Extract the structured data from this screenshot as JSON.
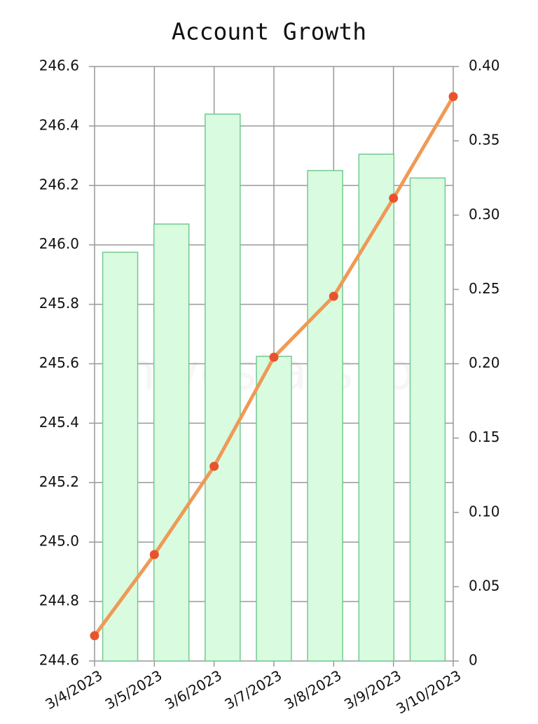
{
  "chart_data": {
    "type": "bar-line",
    "title": "Account Growth",
    "watermark": "hivestats.io",
    "categories": [
      "3/4/2023",
      "3/5/2023",
      "3/6/2023",
      "3/7/2023",
      "3/8/2023",
      "3/9/2023",
      "3/10/2023"
    ],
    "series": [
      {
        "type": "bar",
        "axis": "y2",
        "color": "#d9fbe0",
        "stroke": "#74c98f",
        "values": [
          0.275,
          0.294,
          0.368,
          0.205,
          0.33,
          0.341,
          0.325
        ]
      },
      {
        "type": "line",
        "axis": "y",
        "color": "#ee9a56",
        "marker_color": "#e8532b",
        "values": [
          244.685,
          244.958,
          245.255,
          245.622,
          245.827,
          246.157,
          246.499
        ]
      }
    ],
    "ylim": [
      244.6,
      246.6
    ],
    "yticks": [
      244.6,
      244.8,
      {
        "value": 245,
        "label": "245.0"
      },
      245.2,
      245.4,
      245.6,
      245.8,
      {
        "value": 246,
        "label": "246.0"
      },
      246.2,
      246.4,
      246.6
    ],
    "y2lim": [
      0,
      0.4
    ],
    "y2ticks": [
      0,
      0.05,
      {
        "value": 0.1,
        "label": "0.10"
      },
      0.15,
      {
        "value": 0.2,
        "label": "0.20"
      },
      0.25,
      {
        "value": 0.3,
        "label": "0.30"
      },
      0.35,
      {
        "value": 0.4,
        "label": "0.40"
      }
    ],
    "grid": true
  }
}
